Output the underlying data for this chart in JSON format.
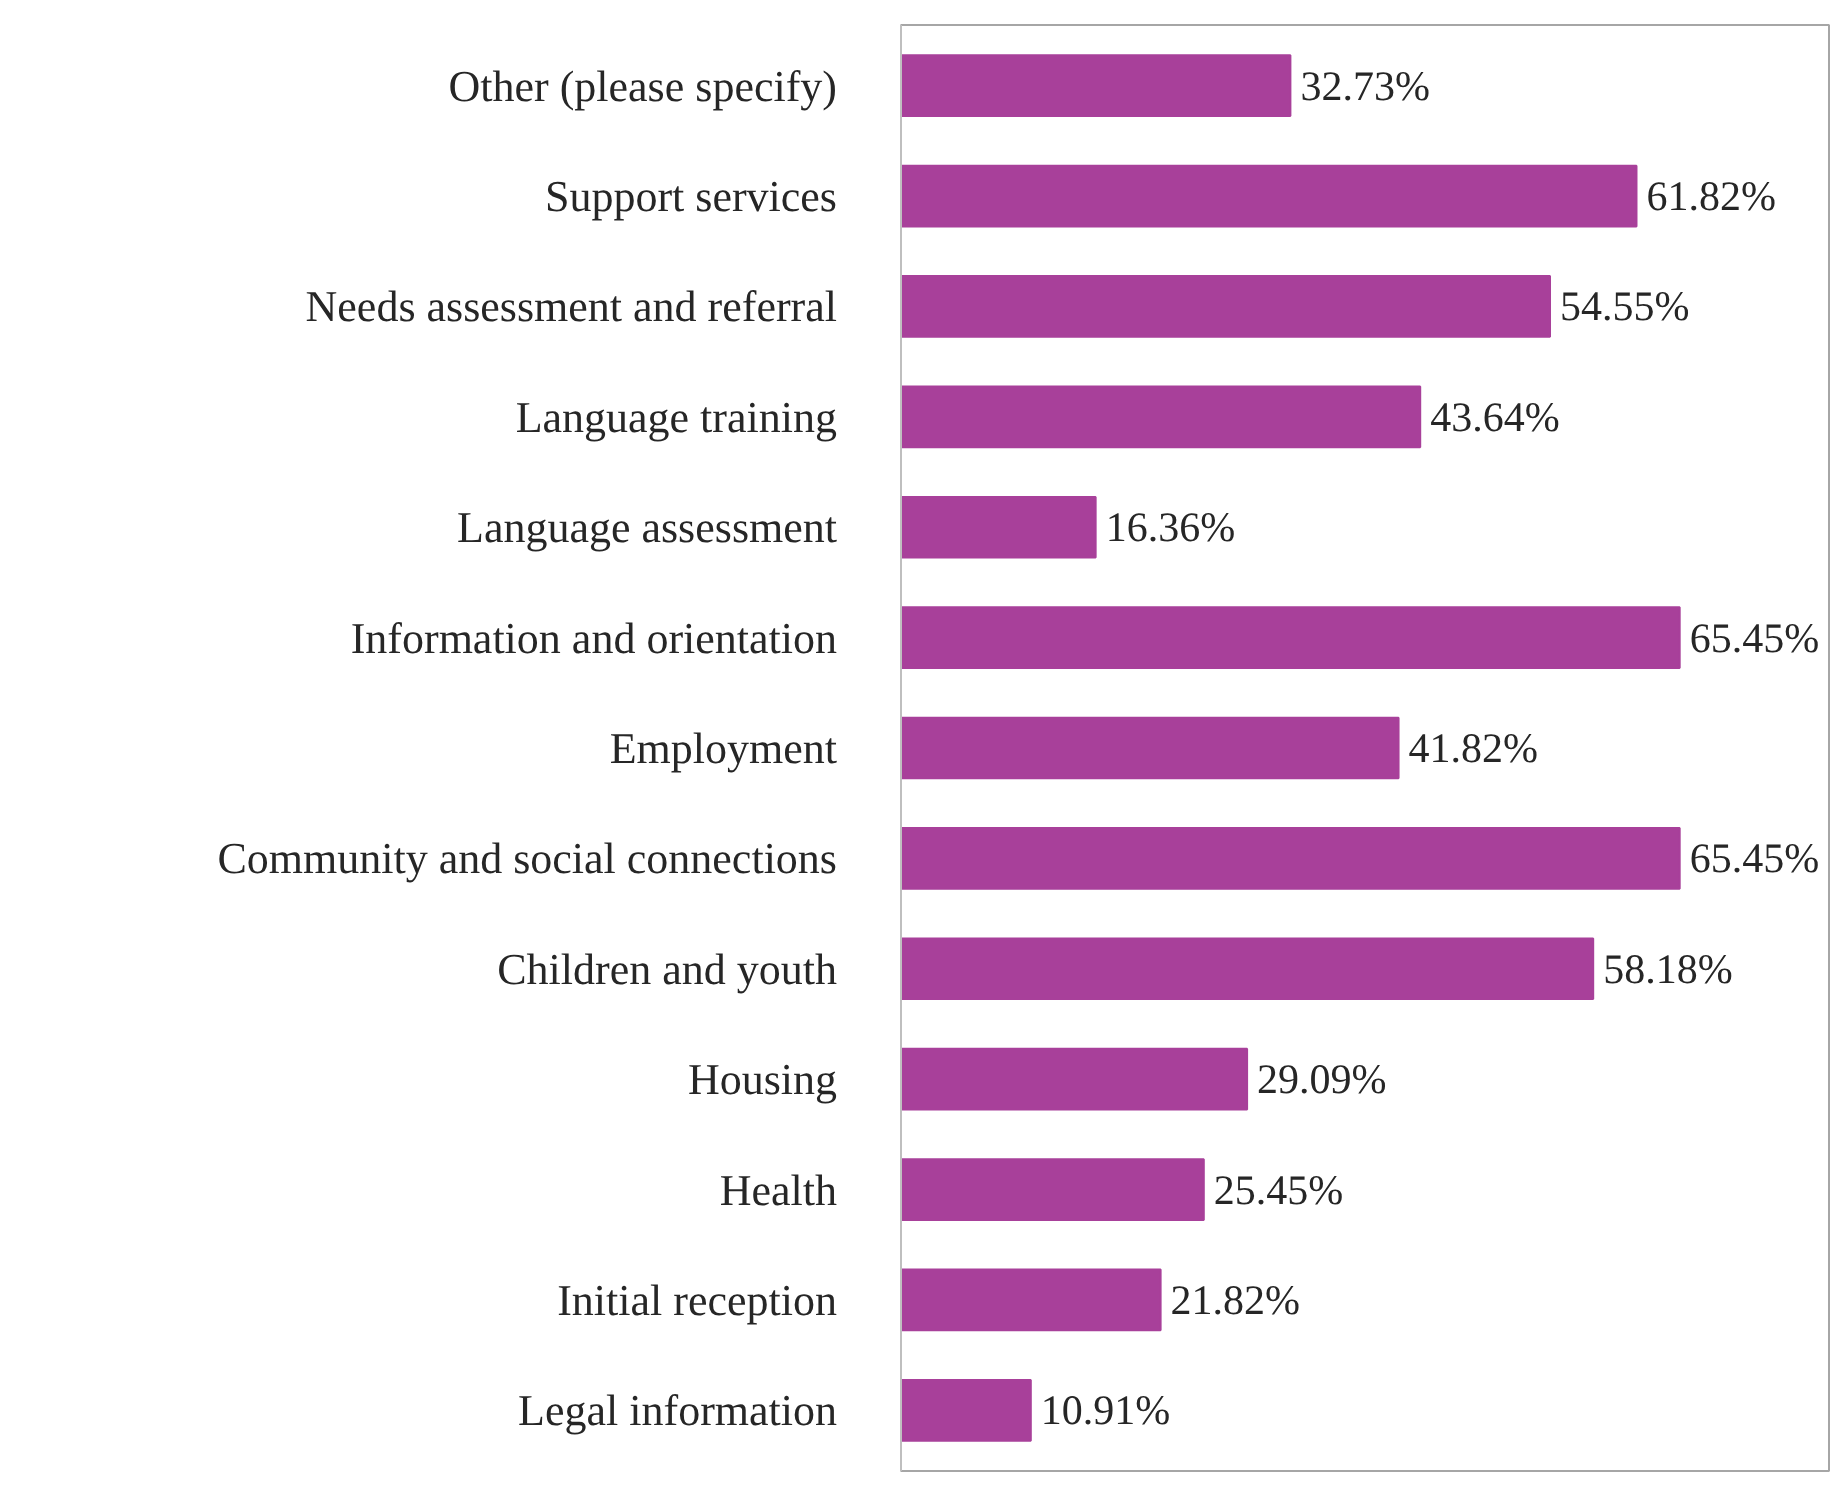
{
  "chart_data": {
    "type": "bar",
    "orientation": "horizontal",
    "categories": [
      "Other (please specify)",
      "Support services",
      "Needs assessment and referral",
      "Language training",
      "Language assessment",
      "Information and orientation",
      "Employment",
      "Community and social connections",
      "Children and youth",
      "Housing",
      "Health",
      "Initial reception",
      "Legal information"
    ],
    "values": [
      32.73,
      61.82,
      54.55,
      43.64,
      16.36,
      65.45,
      41.82,
      65.45,
      58.18,
      29.09,
      25.45,
      21.82,
      10.91
    ],
    "value_labels": [
      "32.73%",
      "61.82%",
      "54.55%",
      "43.64%",
      "16.36%",
      "65.45%",
      "41.82%",
      "65.45%",
      "58.18%",
      "29.09%",
      "25.45%",
      "21.82%",
      "10.91%"
    ],
    "color": "#a8409a",
    "xlim": [
      0,
      78
    ],
    "grid": false,
    "tick_labels": "y"
  }
}
